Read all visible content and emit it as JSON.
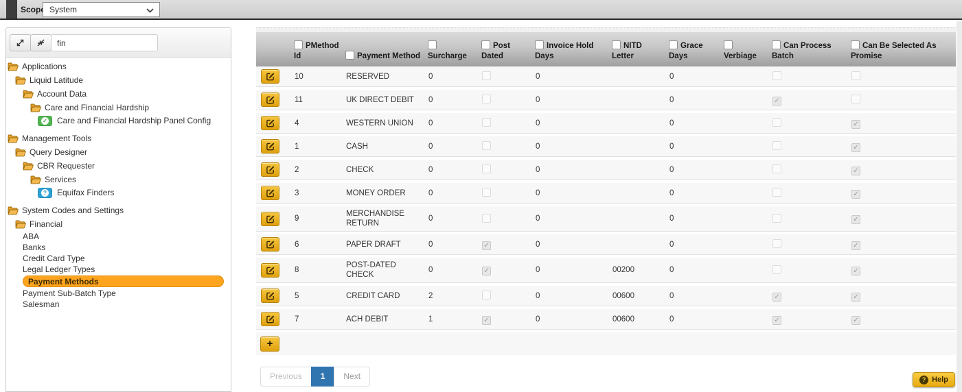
{
  "topbar": {
    "scope_label": "Scope",
    "scope_value": "System"
  },
  "sidebar": {
    "search_value": "fin",
    "tree": [
      {
        "label": "Applications",
        "level": 0,
        "icon": "folder"
      },
      {
        "label": "Liquid Latitude",
        "level": 1,
        "icon": "folder"
      },
      {
        "label": "Account Data",
        "level": 2,
        "icon": "folder"
      },
      {
        "label": "Care and Financial Hardship",
        "level": 3,
        "icon": "folder"
      },
      {
        "label": "Care and Financial Hardship Panel Config",
        "level": 4,
        "icon": "config-check"
      },
      {
        "label": "Management Tools",
        "level": 0,
        "icon": "folder",
        "top_gap": true
      },
      {
        "label": "Query Designer",
        "level": 1,
        "icon": "folder"
      },
      {
        "label": "CBR Requester",
        "level": 2,
        "icon": "folder"
      },
      {
        "label": "Services",
        "level": 3,
        "icon": "folder"
      },
      {
        "label": "Equifax Finders",
        "level": 4,
        "icon": "help-question"
      },
      {
        "label": "System Codes and Settings",
        "level": 0,
        "icon": "folder",
        "top_gap": true
      },
      {
        "label": "Financial",
        "level": 1,
        "icon": "folder"
      },
      {
        "label": "ABA",
        "level": 2,
        "icon": "none"
      },
      {
        "label": "Banks",
        "level": 2,
        "icon": "none"
      },
      {
        "label": "Credit Card Type",
        "level": 2,
        "icon": "none"
      },
      {
        "label": "Legal Ledger Types",
        "level": 2,
        "icon": "none"
      },
      {
        "label": "Payment Methods",
        "level": 2,
        "icon": "none",
        "selected": true
      },
      {
        "label": "Payment Sub-Batch Type",
        "level": 2,
        "icon": "none"
      },
      {
        "label": "Salesman",
        "level": 2,
        "icon": "none"
      }
    ]
  },
  "table": {
    "columns": [
      {
        "label": "PMethod Id",
        "key": "pmethod_id",
        "type": "text"
      },
      {
        "label": "Payment Method",
        "key": "payment_method",
        "type": "text"
      },
      {
        "label": "Surcharge",
        "key": "surcharge",
        "type": "text"
      },
      {
        "label": "Post Dated",
        "key": "post_dated",
        "type": "check"
      },
      {
        "label": "Invoice Hold Days",
        "key": "invoice_hold_days",
        "type": "text"
      },
      {
        "label": "NITD Letter",
        "key": "nitd_letter",
        "type": "text"
      },
      {
        "label": "Grace Days",
        "key": "grace_days",
        "type": "text"
      },
      {
        "label": "Verbiage",
        "key": "verbiage",
        "type": "text"
      },
      {
        "label": "Can Process Batch",
        "key": "can_process_batch",
        "type": "check"
      },
      {
        "label": "Can Be Selected As Promise",
        "key": "can_be_selected_as_promise",
        "type": "check"
      }
    ],
    "rows": [
      {
        "pmethod_id": "10",
        "payment_method": "RESERVED",
        "surcharge": "0",
        "post_dated": false,
        "invoice_hold_days": "0",
        "nitd_letter": "",
        "grace_days": "0",
        "verbiage": "",
        "can_process_batch": false,
        "can_be_selected_as_promise": false
      },
      {
        "pmethod_id": "11",
        "payment_method": "UK DIRECT DEBIT",
        "surcharge": "0",
        "post_dated": false,
        "invoice_hold_days": "0",
        "nitd_letter": "",
        "grace_days": "0",
        "verbiage": "",
        "can_process_batch": true,
        "can_be_selected_as_promise": false
      },
      {
        "pmethod_id": "4",
        "payment_method": "WESTERN UNION",
        "surcharge": "0",
        "post_dated": false,
        "invoice_hold_days": "0",
        "nitd_letter": "",
        "grace_days": "0",
        "verbiage": "",
        "can_process_batch": false,
        "can_be_selected_as_promise": true
      },
      {
        "pmethod_id": "1",
        "payment_method": "CASH",
        "surcharge": "0",
        "post_dated": false,
        "invoice_hold_days": "0",
        "nitd_letter": "",
        "grace_days": "0",
        "verbiage": "",
        "can_process_batch": false,
        "can_be_selected_as_promise": true
      },
      {
        "pmethod_id": "2",
        "payment_method": "CHECK",
        "surcharge": "0",
        "post_dated": false,
        "invoice_hold_days": "0",
        "nitd_letter": "",
        "grace_days": "0",
        "verbiage": "",
        "can_process_batch": false,
        "can_be_selected_as_promise": true
      },
      {
        "pmethod_id": "3",
        "payment_method": "MONEY ORDER",
        "surcharge": "0",
        "post_dated": false,
        "invoice_hold_days": "0",
        "nitd_letter": "",
        "grace_days": "0",
        "verbiage": "",
        "can_process_batch": false,
        "can_be_selected_as_promise": true
      },
      {
        "pmethod_id": "9",
        "payment_method": "MERCHANDISE RETURN",
        "surcharge": "0",
        "post_dated": false,
        "invoice_hold_days": "0",
        "nitd_letter": "",
        "grace_days": "0",
        "verbiage": "",
        "can_process_batch": false,
        "can_be_selected_as_promise": true
      },
      {
        "pmethod_id": "6",
        "payment_method": "PAPER DRAFT",
        "surcharge": "0",
        "post_dated": true,
        "invoice_hold_days": "0",
        "nitd_letter": "",
        "grace_days": "0",
        "verbiage": "",
        "can_process_batch": false,
        "can_be_selected_as_promise": true
      },
      {
        "pmethod_id": "8",
        "payment_method": "POST-DATED CHECK",
        "surcharge": "0",
        "post_dated": true,
        "invoice_hold_days": "0",
        "nitd_letter": "00200",
        "grace_days": "0",
        "verbiage": "",
        "can_process_batch": false,
        "can_be_selected_as_promise": true
      },
      {
        "pmethod_id": "5",
        "payment_method": "CREDIT CARD",
        "surcharge": "2",
        "post_dated": false,
        "invoice_hold_days": "0",
        "nitd_letter": "00600",
        "grace_days": "0",
        "verbiage": "",
        "can_process_batch": true,
        "can_be_selected_as_promise": true
      },
      {
        "pmethod_id": "7",
        "payment_method": "ACH DEBIT",
        "surcharge": "1",
        "post_dated": true,
        "invoice_hold_days": "0",
        "nitd_letter": "00600",
        "grace_days": "0",
        "verbiage": "",
        "can_process_batch": true,
        "can_be_selected_as_promise": true
      }
    ]
  },
  "footer": {
    "add_label": "+",
    "pagination": {
      "previous": "Previous",
      "current": "1",
      "next": "Next"
    },
    "help_label": "Help"
  }
}
